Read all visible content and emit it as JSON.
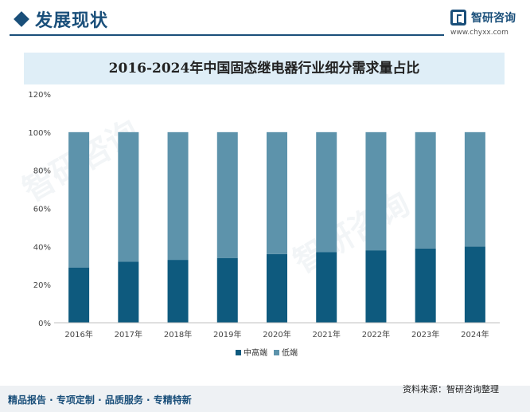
{
  "header": {
    "section_title": "发展现状",
    "brand_name": "智研咨询",
    "brand_url": "www.chyxx.com"
  },
  "footer": {
    "left_text": "精品报告 · 专项定制 · 品质服务 · 专精特新",
    "source_text": "资料来源：智研咨询整理"
  },
  "chart_data": {
    "type": "bar",
    "stacked": true,
    "title": "2016-2024年中国固态继电器行业细分需求量占比",
    "xlabel": "",
    "ylabel": "",
    "categories": [
      "2016年",
      "2017年",
      "2018年",
      "2019年",
      "2020年",
      "2021年",
      "2022年",
      "2023年",
      "2024年"
    ],
    "series": [
      {
        "name": "中高端",
        "values": [
          29,
          32,
          33,
          34,
          36,
          37,
          38,
          39,
          40
        ],
        "color": "#0e5a7e"
      },
      {
        "name": "低端",
        "values": [
          71,
          68,
          67,
          66,
          64,
          63,
          62,
          61,
          60
        ],
        "color": "#5d93ab"
      }
    ],
    "ylim": [
      0,
      120
    ],
    "yticks": [
      "0%",
      "20%",
      "40%",
      "60%",
      "80%",
      "100%",
      "120%"
    ],
    "grid": false,
    "legend": "bottom"
  }
}
